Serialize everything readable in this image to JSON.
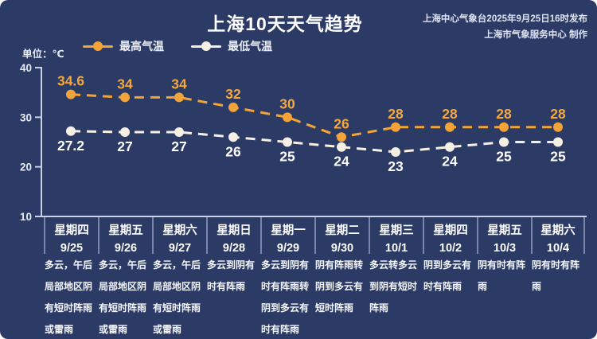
{
  "header": {
    "title": "上海10天天气趋势",
    "attribution_line1": "上海中心气象台2025年9月25日16时发布",
    "attribution_line2": "上海市气象服务中心 制作"
  },
  "unit_label": "单位：℃",
  "legend": {
    "max_label": "最高气温",
    "min_label": "最低气温"
  },
  "colors": {
    "background": "#2c3a66",
    "axis": "#c9d1e6",
    "max_line": "#f2a438",
    "min_line": "#f6efe3",
    "max_label_text": "#f5a83b",
    "min_label_text": "#ffffff"
  },
  "chart_data": {
    "type": "line",
    "title": "上海10天天气趋势",
    "categories": [
      "9/25",
      "9/26",
      "9/27",
      "9/28",
      "9/29",
      "9/30",
      "10/1",
      "10/2",
      "10/3",
      "10/4"
    ],
    "weekdays": [
      "星期四",
      "星期五",
      "星期六",
      "星期日",
      "星期一",
      "星期二",
      "星期三",
      "星期四",
      "星期五",
      "星期六"
    ],
    "series": [
      {
        "name": "最高气温",
        "color": "#f2a438",
        "label_color": "#f5a83b",
        "label_position": "above",
        "values": [
          34.6,
          34,
          34,
          32,
          30,
          26,
          28,
          28,
          28,
          28
        ]
      },
      {
        "name": "最低气温",
        "color": "#f6efe3",
        "label_color": "#ffffff",
        "label_position": "below",
        "values": [
          27.2,
          27,
          27,
          26,
          25,
          24,
          23,
          24,
          25,
          25
        ]
      }
    ],
    "ylabel": "单位：℃",
    "ylim": [
      10,
      40
    ],
    "yticks": [
      40,
      30,
      20,
      10
    ],
    "grid": false,
    "line_style": "dashed",
    "legend_position": "top-left"
  },
  "days": [
    {
      "weekday": "星期四",
      "date": "9/25",
      "weather": "多云，午后局部地区阴有短时阵雨或雷雨"
    },
    {
      "weekday": "星期五",
      "date": "9/26",
      "weather": "多云，午后局部地区阴有短时阵雨或雷雨"
    },
    {
      "weekday": "星期六",
      "date": "9/27",
      "weather": "多云，午后局部地区阴有短时阵雨或雷雨"
    },
    {
      "weekday": "星期日",
      "date": "9/28",
      "weather": "多云到阴有时有阵雨"
    },
    {
      "weekday": "星期一",
      "date": "9/29",
      "weather": "多云到阴有时有阵雨转阴到多云有时有阵雨"
    },
    {
      "weekday": "星期二",
      "date": "9/30",
      "weather": "阴有阵雨转阴到多云有短时阵雨"
    },
    {
      "weekday": "星期三",
      "date": "10/1",
      "weather": "多云转多云到阴有短时阵雨"
    },
    {
      "weekday": "星期四",
      "date": "10/2",
      "weather": "阴到多云有时有阵雨"
    },
    {
      "weekday": "星期五",
      "date": "10/3",
      "weather": "阴有时有阵雨"
    },
    {
      "weekday": "星期六",
      "date": "10/4",
      "weather": "阴有时有阵雨"
    }
  ]
}
